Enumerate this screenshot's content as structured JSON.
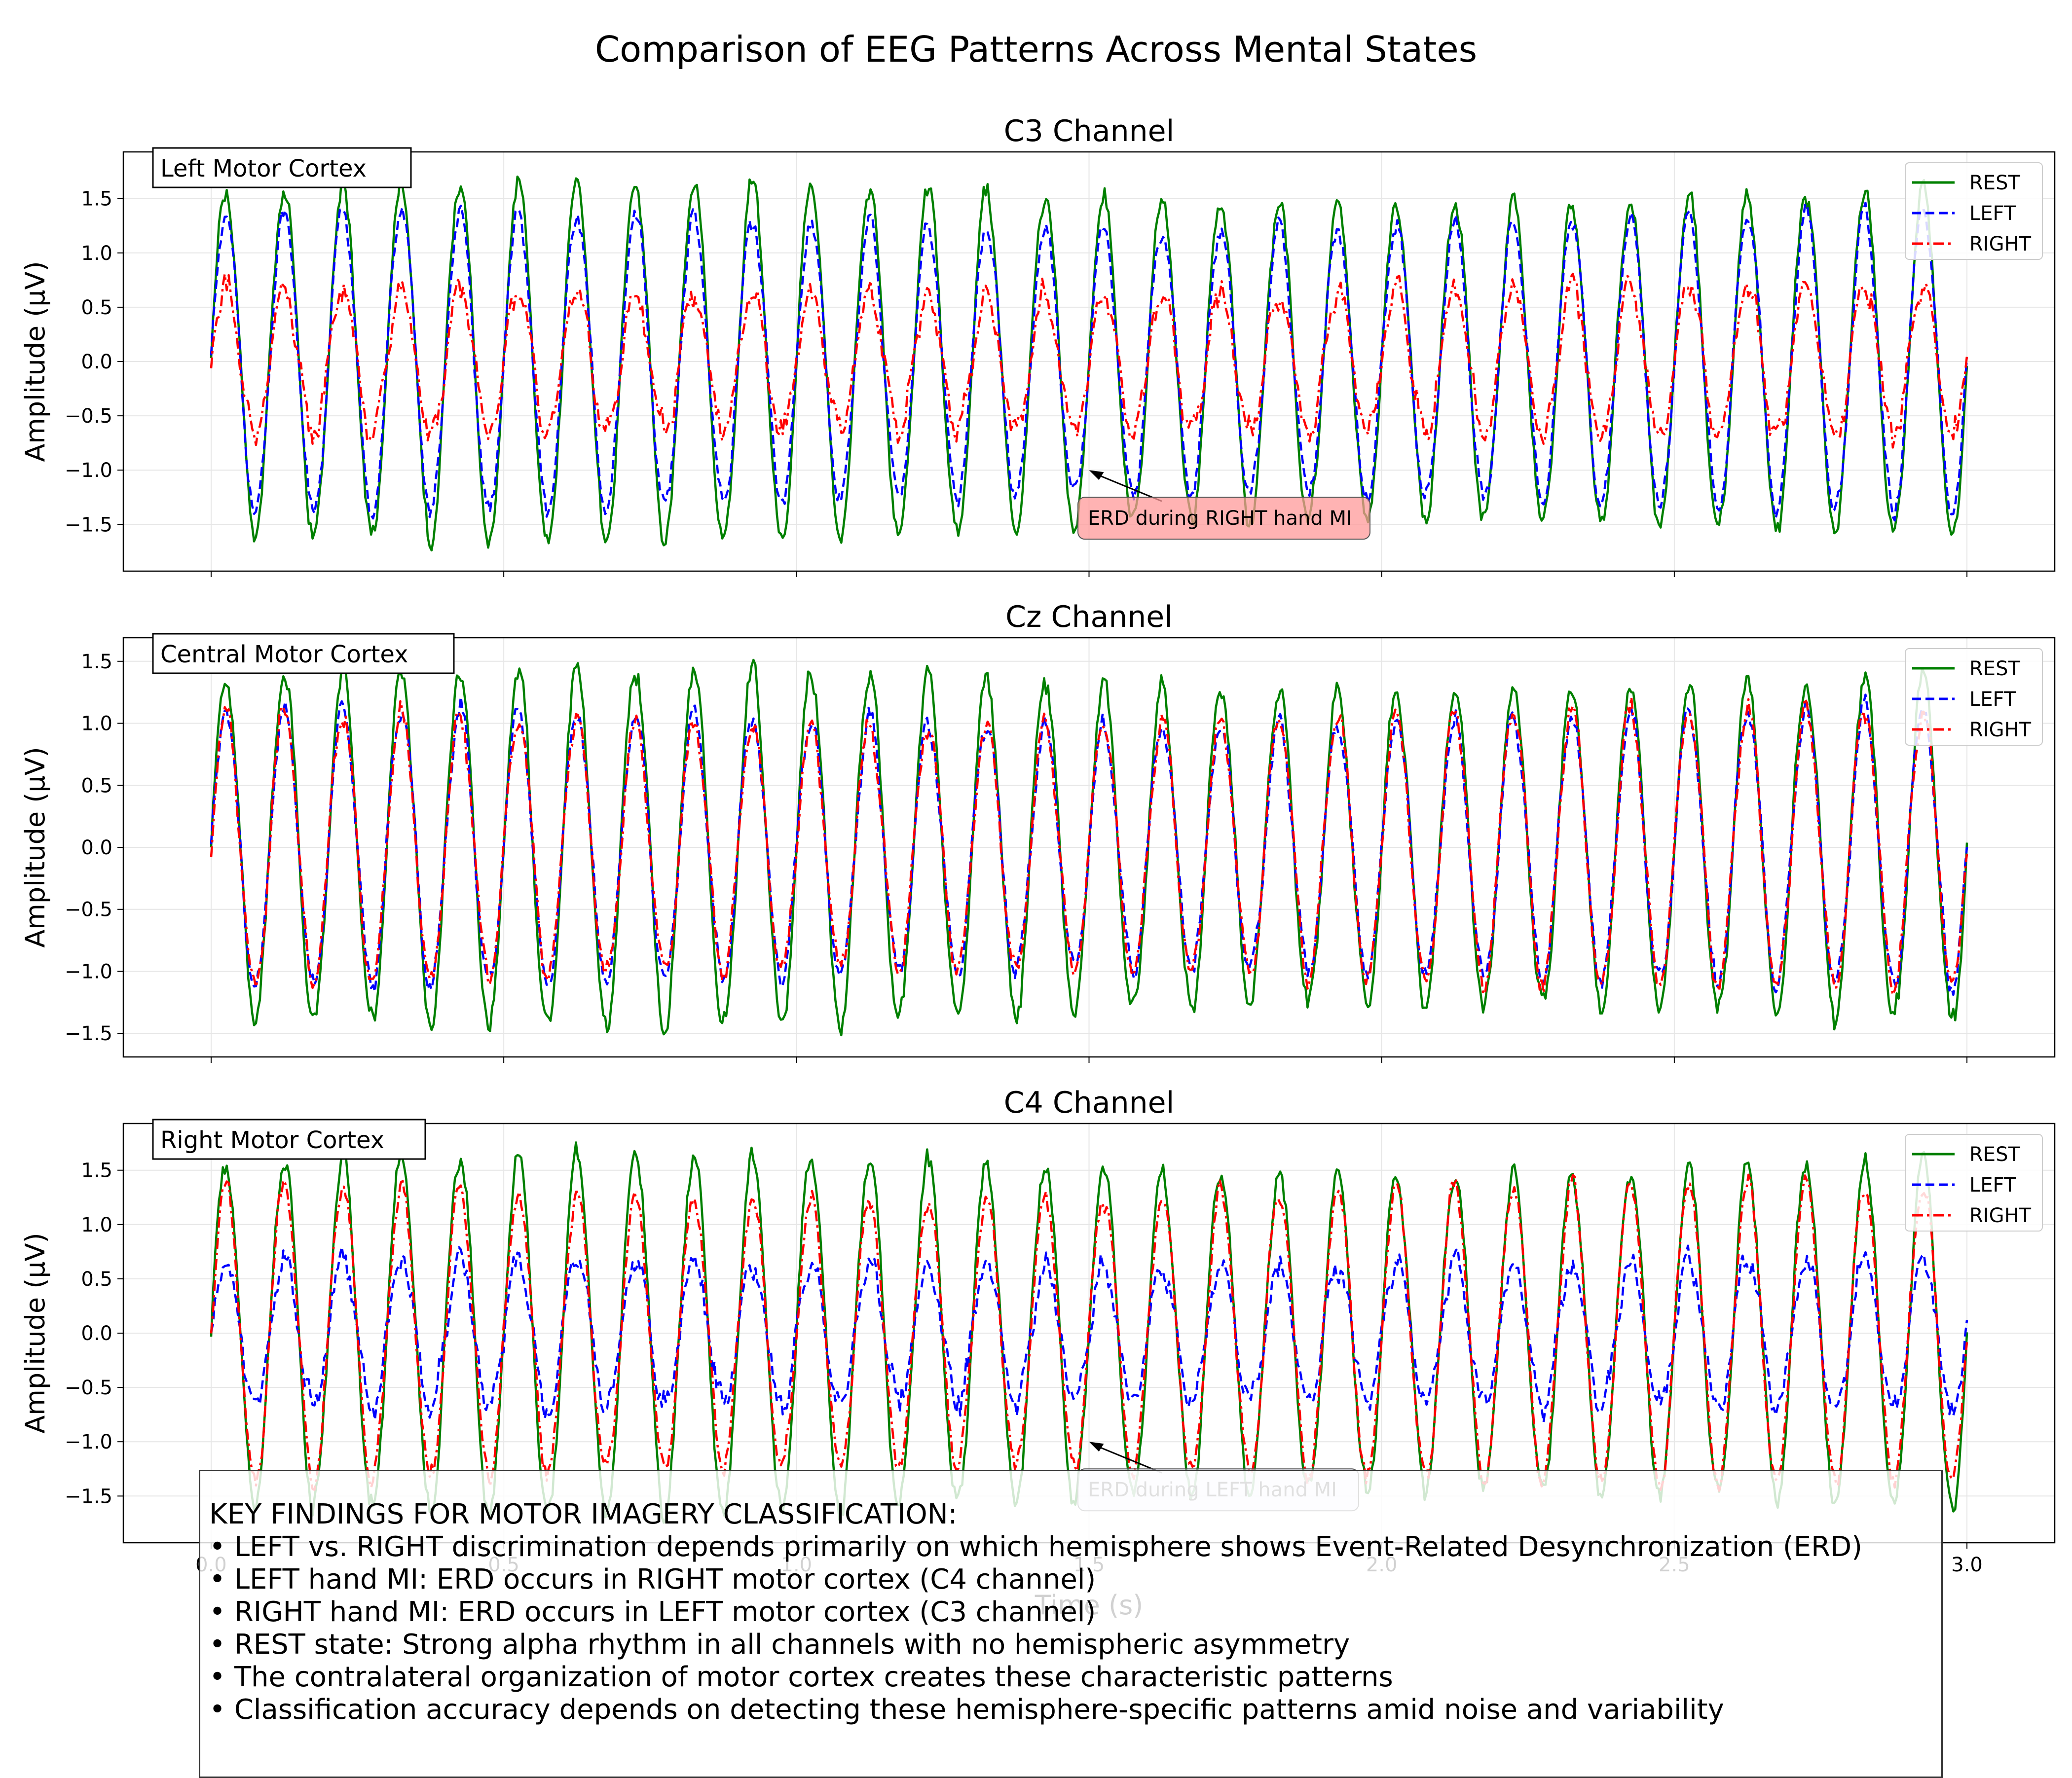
{
  "figure": {
    "title": "Comparison of EEG Patterns Across Mental States"
  },
  "colors": {
    "rest": "#008000",
    "left": "#0000ff",
    "right": "#ff0000",
    "erd_box_red": "#ff9999",
    "erd_box_blue": "#e6e6fa"
  },
  "chart_data": [
    {
      "type": "line",
      "title": "C3 Channel",
      "region_label": "Left Motor Cortex",
      "xlabel": "",
      "ylabel": "Amplitude (µV)",
      "xlim": [
        -0.15,
        3.15
      ],
      "ylim": [
        -1.93,
        1.93
      ],
      "xticks": [
        0.0,
        0.5,
        1.0,
        1.5,
        2.0,
        2.5,
        3.0
      ],
      "yticks": [
        -1.5,
        -1.0,
        -0.5,
        0.0,
        0.5,
        1.0,
        1.5
      ],
      "ytick_labels": [
        "−1.5",
        "−1.0",
        "−0.5",
        "0.0",
        "0.5",
        "1.0",
        "1.5"
      ],
      "grid": true,
      "legend": "top-right",
      "signal": {
        "alpha_freq_hz": 10,
        "x_start": 0.0,
        "x_end": 3.0
      },
      "series": [
        {
          "name": "REST",
          "color": "#008000",
          "style": "solid",
          "amplitude": 1.55
        },
        {
          "name": "LEFT",
          "color": "#0000ff",
          "style": "dashed",
          "amplitude": 1.3
        },
        {
          "name": "RIGHT",
          "color": "#ff0000",
          "style": "dashdot",
          "amplitude": 0.65
        }
      ],
      "annotation": {
        "text": "ERD during RIGHT hand MI",
        "arrow_to": [
          1.5,
          -1.0
        ],
        "box_color": "#ff9999"
      }
    },
    {
      "type": "line",
      "title": "Cz Channel",
      "region_label": "Central Motor Cortex",
      "xlabel": "",
      "ylabel": "Amplitude (µV)",
      "xlim": [
        -0.15,
        3.15
      ],
      "ylim": [
        -1.69,
        1.69
      ],
      "xticks": [
        0.0,
        0.5,
        1.0,
        1.5,
        2.0,
        2.5,
        3.0
      ],
      "yticks": [
        -1.5,
        -1.0,
        -0.5,
        0.0,
        0.5,
        1.0,
        1.5
      ],
      "ytick_labels": [
        "−1.5",
        "−1.0",
        "−0.5",
        "0.0",
        "0.5",
        "1.0",
        "1.5"
      ],
      "grid": true,
      "legend": "top-right",
      "signal": {
        "alpha_freq_hz": 10,
        "x_start": 0.0,
        "x_end": 3.0
      },
      "series": [
        {
          "name": "REST",
          "color": "#008000",
          "style": "solid",
          "amplitude": 1.35
        },
        {
          "name": "LEFT",
          "color": "#0000ff",
          "style": "dashed",
          "amplitude": 1.05
        },
        {
          "name": "RIGHT",
          "color": "#ff0000",
          "style": "dashdot",
          "amplitude": 1.05
        }
      ]
    },
    {
      "type": "line",
      "title": "C4 Channel",
      "region_label": "Right Motor Cortex",
      "xlabel": "Time (s)",
      "ylabel": "Amplitude (µV)",
      "xlim": [
        -0.15,
        3.15
      ],
      "ylim": [
        -1.93,
        1.93
      ],
      "xticks": [
        0.0,
        0.5,
        1.0,
        1.5,
        2.0,
        2.5,
        3.0
      ],
      "xtick_labels": [
        "0.0",
        "0.5",
        "1.0",
        "1.5",
        "2.0",
        "2.5",
        "3.0"
      ],
      "yticks": [
        -1.5,
        -1.0,
        -0.5,
        0.0,
        0.5,
        1.0,
        1.5
      ],
      "ytick_labels": [
        "−1.5",
        "−1.0",
        "−0.5",
        "0.0",
        "0.5",
        "1.0",
        "1.5"
      ],
      "grid": true,
      "legend": "top-right",
      "signal": {
        "alpha_freq_hz": 10,
        "x_start": 0.0,
        "x_end": 3.0
      },
      "series": [
        {
          "name": "REST",
          "color": "#008000",
          "style": "solid",
          "amplitude": 1.55
        },
        {
          "name": "LEFT",
          "color": "#0000ff",
          "style": "dashed",
          "amplitude": 0.65
        },
        {
          "name": "RIGHT",
          "color": "#ff0000",
          "style": "dashdot",
          "amplitude": 1.3
        }
      ],
      "annotation": {
        "text": "ERD during LEFT hand MI",
        "arrow_to": [
          1.5,
          -1.0
        ],
        "box_color": "#e6e6fa"
      }
    }
  ],
  "findings": {
    "heading": "KEY FINDINGS FOR MOTOR IMAGERY CLASSIFICATION:",
    "items": [
      "• LEFT vs. RIGHT discrimination depends primarily on which hemisphere shows Event-Related Desynchronization (ERD)",
      "• LEFT hand MI: ERD occurs in RIGHT motor cortex (C4 channel)",
      "• RIGHT hand MI: ERD occurs in LEFT motor cortex (C3 channel)",
      "• REST state: Strong alpha rhythm in all channels with no hemispheric asymmetry",
      "• The contralateral organization of motor cortex creates these characteristic patterns",
      "• Classification accuracy depends on detecting these hemisphere-specific patterns amid noise and variability"
    ]
  }
}
